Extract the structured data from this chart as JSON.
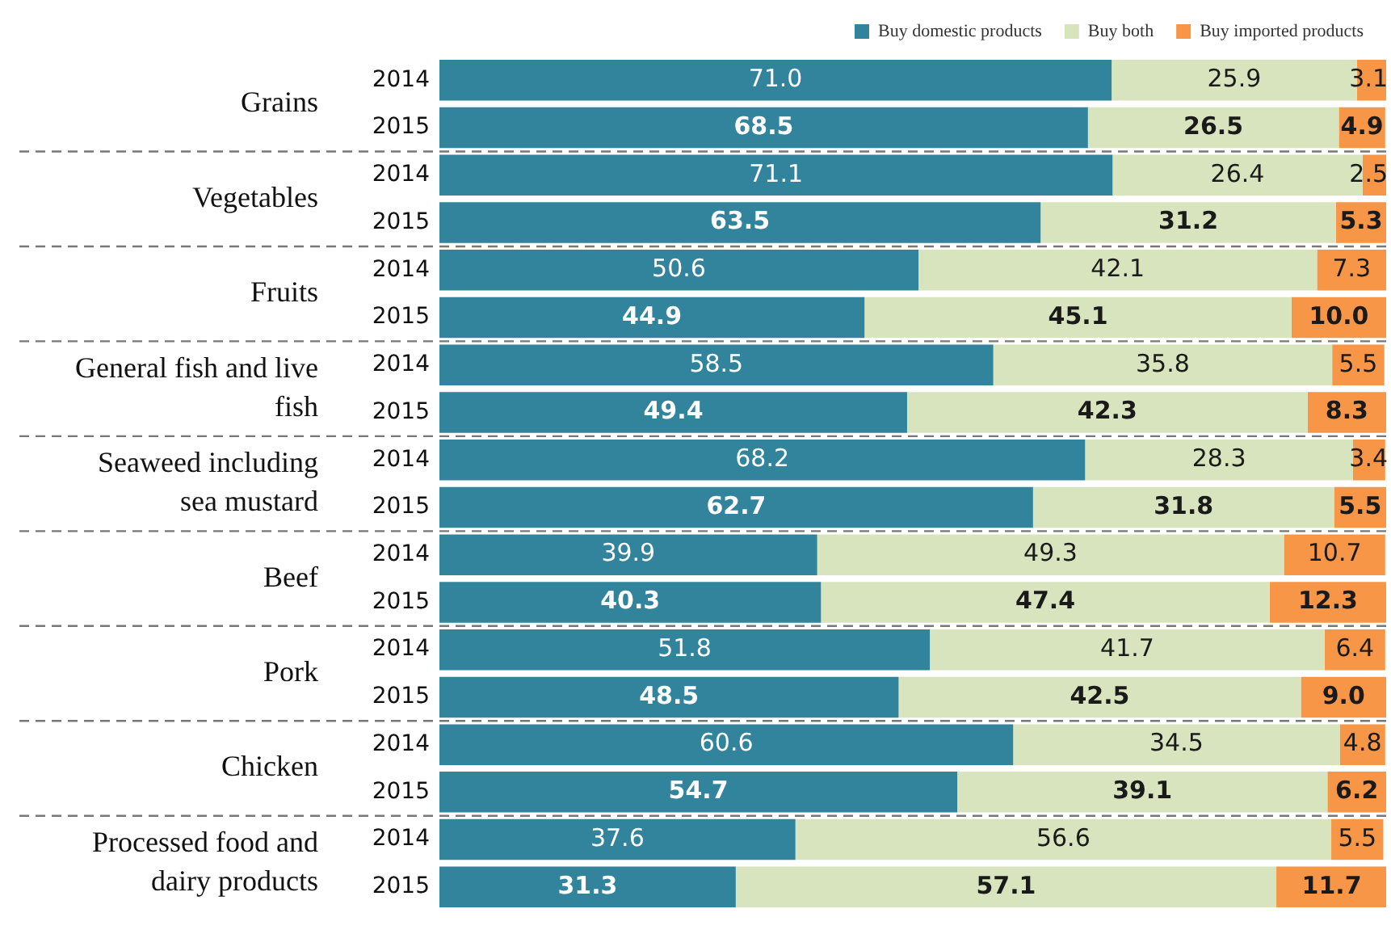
{
  "chart_data": {
    "type": "bar",
    "orientation": "horizontal",
    "stacked": true,
    "legend": "top right",
    "tick_labels": "y",
    "grid": false,
    "xlim": [
      0,
      100
    ],
    "categories": [
      "2014",
      "2015",
      "2014",
      "2015",
      "2014",
      "2015",
      "2014",
      "2015",
      "2014",
      "2015",
      "2014",
      "2015",
      "2014",
      "2015",
      "2014",
      "2015",
      "2014",
      "2015"
    ],
    "annotations": [
      "Grains",
      "Vegetables",
      "Fruits",
      "General fish and live fish",
      "Seaweed including sea mustard",
      "Beef",
      "Pork",
      "Chicken",
      "Processed food and dairy products"
    ],
    "series": [
      {
        "name": "Buy domestic products",
        "color": "#31849b",
        "values": [
          71.0,
          68.5,
          71.1,
          63.5,
          50.6,
          44.9,
          58.5,
          49.4,
          68.2,
          62.7,
          39.9,
          40.3,
          51.8,
          48.5,
          60.6,
          54.7,
          37.6,
          31.3
        ],
        "value_labels": [
          "71.0",
          "68.5",
          "71.1",
          "63.5",
          "50.6",
          "44.9",
          "58.5",
          "49.4",
          "68.2",
          "62.7",
          "39.9",
          "40.3",
          "51.8",
          "48.5",
          "60.6",
          "54.7",
          "37.6",
          "31.3"
        ]
      },
      {
        "name": "Buy both",
        "color": "#d7e4bd",
        "values": [
          25.9,
          26.5,
          26.4,
          31.2,
          42.1,
          45.1,
          35.8,
          42.3,
          28.3,
          31.8,
          49.3,
          47.4,
          41.7,
          42.5,
          34.5,
          39.1,
          56.6,
          57.1
        ],
        "value_labels": [
          "25.9",
          "26.5",
          "26.4",
          "31.2",
          "42.1",
          "45.1",
          "35.8",
          "42.3",
          "28.3",
          "31.8",
          "49.3",
          "47.4",
          "41.7",
          "42.5",
          "34.5",
          "39.1",
          "56.6",
          "57.1"
        ]
      },
      {
        "name": "Buy imported products",
        "color": "#f79646",
        "values": [
          3.1,
          4.9,
          2.5,
          5.3,
          7.3,
          10.0,
          5.5,
          8.3,
          3.4,
          5.5,
          10.7,
          12.3,
          6.4,
          9.0,
          4.8,
          6.2,
          5.5,
          11.7
        ],
        "value_labels": [
          "3.1",
          "4.9",
          "2.5",
          "5.3",
          "7.3",
          "10.0",
          "5.5",
          "8.3",
          "3.4",
          "5.5",
          "10.7",
          "12.3",
          "6.4",
          "9.0",
          "4.8",
          "6.2",
          "5.5",
          "11.7"
        ]
      }
    ]
  }
}
